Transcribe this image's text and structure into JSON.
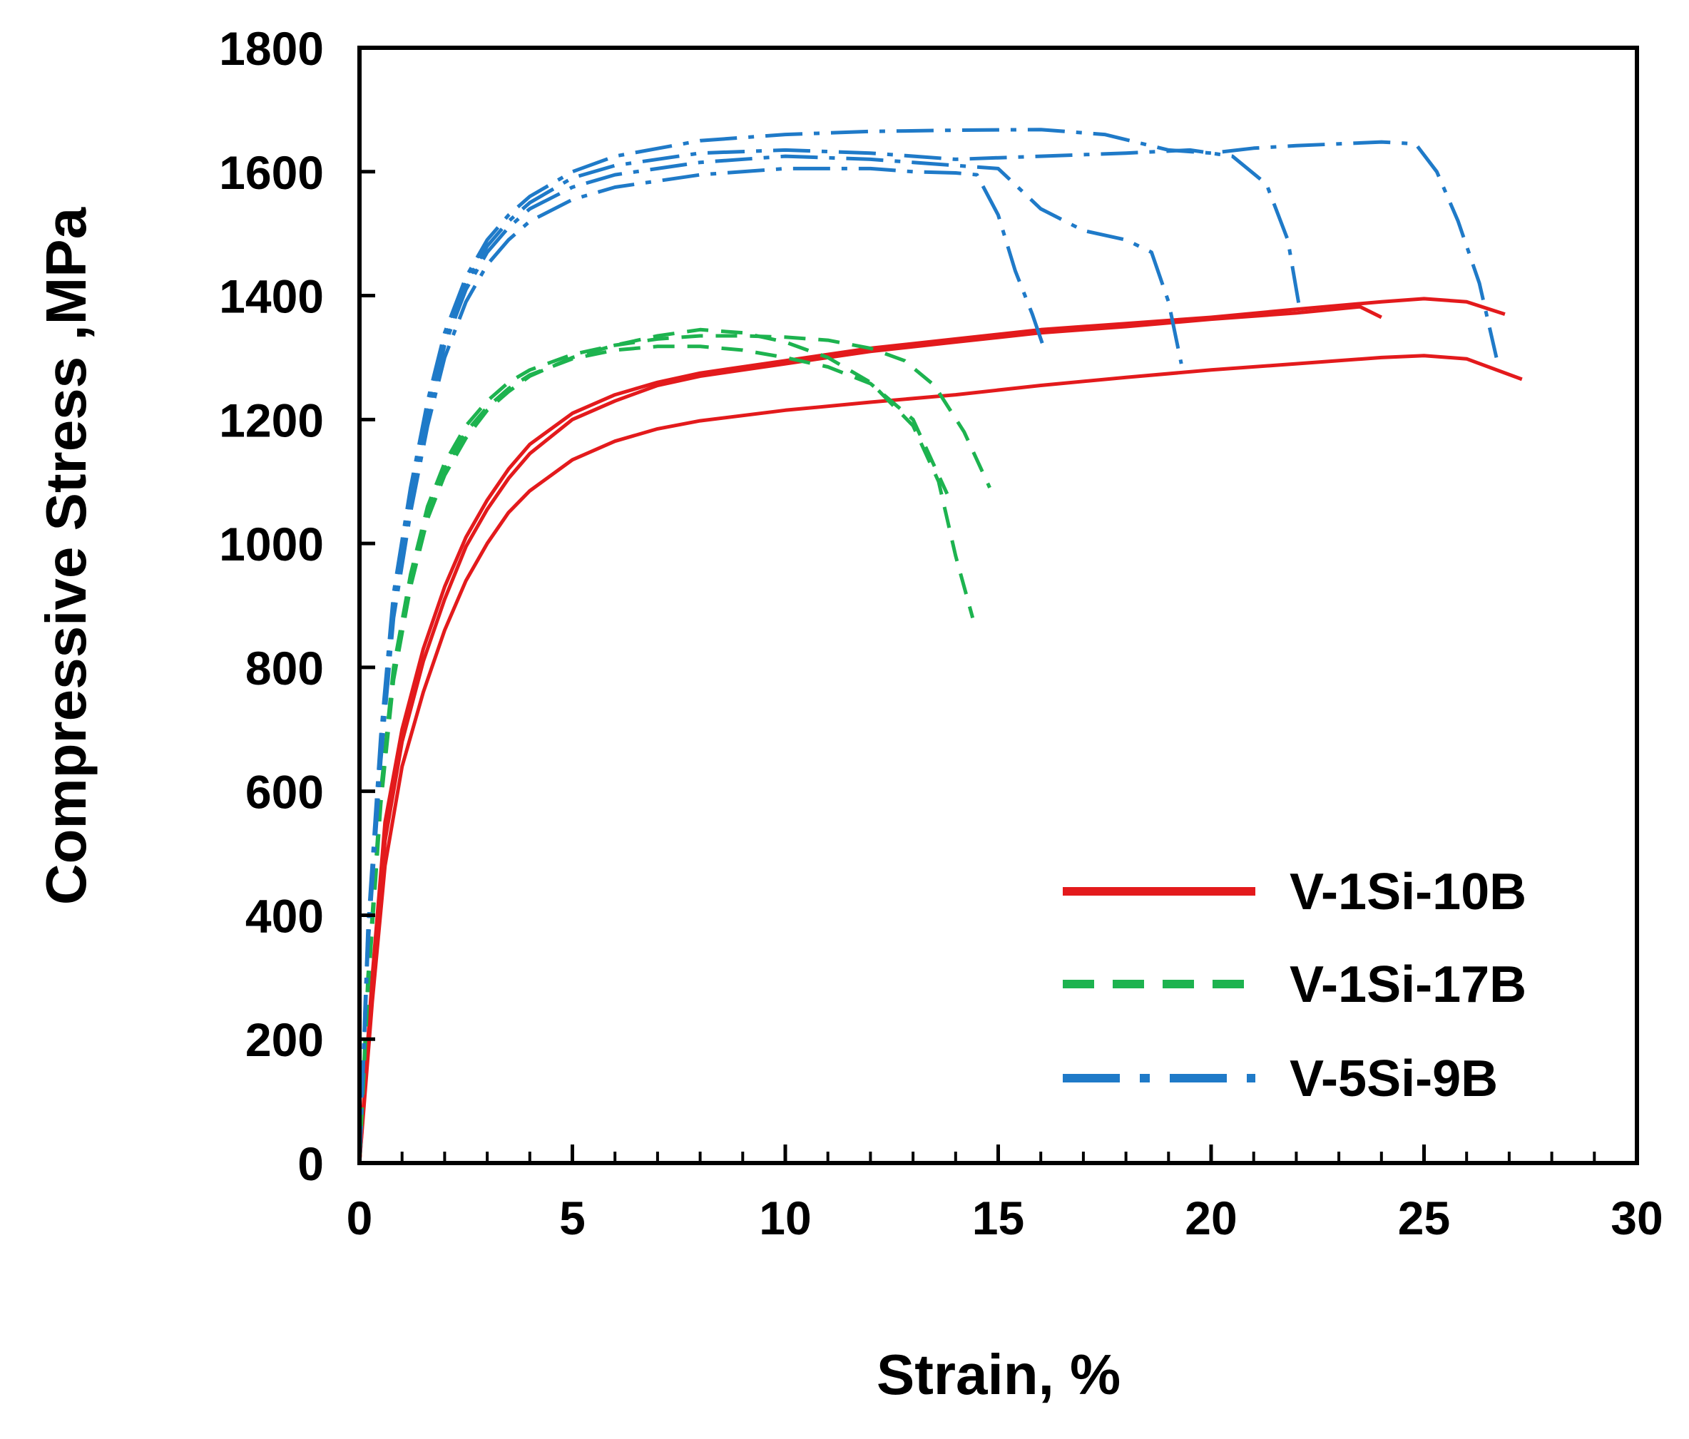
{
  "chart_data": {
    "type": "line",
    "title": "",
    "xlabel": "Strain, %",
    "ylabel": "Compressive Stress ,MPa",
    "xlim": [
      0,
      30
    ],
    "ylim": [
      0,
      1800
    ],
    "xticks": [
      "0",
      "5",
      "10",
      "15",
      "20",
      "25",
      "30"
    ],
    "yticks": [
      "0",
      "200",
      "400",
      "600",
      "800",
      "1000",
      "1200",
      "1400",
      "1600",
      "1800"
    ],
    "grid": false,
    "legend_position": "bottom-right",
    "groups": [
      {
        "name": "V-1Si-10B",
        "color": "#e31a1c",
        "style": "solid",
        "series": [
          {
            "name": "V-1Si-10B run 1",
            "x": [
              0,
              0.3,
              0.6,
              1,
              1.5,
              2,
              2.5,
              3,
              3.5,
              4,
              5,
              6,
              7,
              8,
              10,
              12,
              14,
              16,
              18,
              20,
              22,
              24,
              25,
              26,
              26.9
            ],
            "y": [
              0,
              300,
              550,
              700,
              830,
              930,
              1010,
              1070,
              1120,
              1160,
              1210,
              1240,
              1260,
              1275,
              1295,
              1315,
              1330,
              1345,
              1355,
              1365,
              1378,
              1390,
              1395,
              1390,
              1370
            ]
          },
          {
            "name": "V-1Si-10B run 2",
            "x": [
              0,
              0.3,
              0.6,
              1,
              1.5,
              2,
              2.5,
              3,
              3.5,
              4,
              5,
              6,
              7,
              8,
              10,
              12,
              14,
              16,
              18,
              20,
              22,
              23.5,
              24
            ],
            "y": [
              0,
              280,
              520,
              680,
              810,
              910,
              995,
              1055,
              1105,
              1145,
              1200,
              1230,
              1255,
              1270,
              1290,
              1310,
              1325,
              1340,
              1350,
              1362,
              1372,
              1382,
              1365
            ]
          },
          {
            "name": "V-1Si-10B run 3",
            "x": [
              0,
              0.3,
              0.6,
              1,
              1.5,
              2,
              2.5,
              3,
              3.5,
              4,
              5,
              6,
              7,
              8,
              10,
              12,
              14,
              16,
              18,
              20,
              22,
              24,
              25,
              26,
              27.3
            ],
            "y": [
              0,
              260,
              480,
              640,
              760,
              860,
              940,
              1000,
              1050,
              1085,
              1135,
              1165,
              1185,
              1198,
              1215,
              1228,
              1240,
              1255,
              1268,
              1280,
              1290,
              1300,
              1303,
              1298,
              1265
            ]
          }
        ]
      },
      {
        "name": "V-1Si-17B",
        "color": "#1db34f",
        "style": "dashed",
        "series": [
          {
            "name": "V-1Si-17B run 1",
            "x": [
              0,
              0.2,
              0.5,
              0.8,
              1.2,
              1.6,
              2,
              2.5,
              3,
              3.5,
              4,
              5,
              6,
              7,
              8,
              9,
              10,
              11,
              12,
              12.8,
              13.5,
              14.2,
              14.8
            ],
            "y": [
              0,
              300,
              600,
              800,
              950,
              1060,
              1130,
              1190,
              1230,
              1260,
              1280,
              1305,
              1320,
              1330,
              1335,
              1335,
              1333,
              1328,
              1315,
              1295,
              1255,
              1180,
              1090
            ]
          },
          {
            "name": "V-1Si-17B run 2",
            "x": [
              0,
              0.2,
              0.5,
              0.8,
              1.2,
              1.6,
              2,
              2.5,
              3,
              3.5,
              4,
              5,
              6,
              7,
              8,
              9,
              10,
              11,
              12,
              13,
              13.6,
              14,
              14.4
            ],
            "y": [
              0,
              280,
              580,
              780,
              930,
              1040,
              1110,
              1170,
              1215,
              1245,
              1270,
              1300,
              1320,
              1335,
              1345,
              1340,
              1325,
              1300,
              1260,
              1190,
              1100,
              980,
              880
            ]
          },
          {
            "name": "V-1Si-17B run 3",
            "x": [
              0,
              0.2,
              0.5,
              0.8,
              1.2,
              1.6,
              2,
              2.5,
              3,
              3.5,
              4,
              5,
              6,
              7,
              8,
              9,
              10,
              11,
              12,
              13,
              13.8
            ],
            "y": [
              0,
              290,
              590,
              790,
              940,
              1050,
              1120,
              1180,
              1220,
              1250,
              1272,
              1298,
              1312,
              1318,
              1318,
              1312,
              1300,
              1285,
              1258,
              1200,
              1080
            ]
          }
        ]
      },
      {
        "name": "V-5Si-9B",
        "color": "#1f7ac8",
        "style": "dashdot",
        "series": [
          {
            "name": "V-5Si-9B run 1",
            "x": [
              0,
              0.2,
              0.5,
              0.8,
              1.2,
              1.6,
              2,
              2.5,
              3,
              3.5,
              4,
              5,
              6,
              8,
              10,
              12,
              13,
              14,
              14.5,
              15,
              15.4,
              15.8,
              16.1
            ],
            "y": [
              0,
              350,
              650,
              880,
              1050,
              1190,
              1300,
              1390,
              1450,
              1490,
              1520,
              1555,
              1575,
              1595,
              1605,
              1605,
              1600,
              1598,
              1595,
              1530,
              1440,
              1370,
              1310
            ]
          },
          {
            "name": "V-5Si-9B run 2",
            "x": [
              0,
              0.2,
              0.5,
              0.8,
              1.2,
              1.6,
              2,
              2.5,
              3,
              3.5,
              4,
              5,
              6,
              8,
              10,
              12,
              13,
              14,
              15,
              16,
              17,
              18,
              18.6,
              19,
              19.3
            ],
            "y": [
              0,
              360,
              670,
              900,
              1070,
              1210,
              1320,
              1410,
              1470,
              1510,
              1540,
              1575,
              1595,
              1615,
              1625,
              1620,
              1615,
              1610,
              1605,
              1540,
              1505,
              1490,
              1470,
              1390,
              1290
            ]
          },
          {
            "name": "V-5Si-9B run 3",
            "x": [
              0,
              0.2,
              0.5,
              0.8,
              1.2,
              1.6,
              2,
              2.5,
              3,
              3.5,
              4,
              5,
              6,
              8,
              10,
              12,
              14,
              16,
              18,
              19.5,
              20.5,
              21.3,
              21.8,
              22.1
            ],
            "y": [
              0,
              370,
              680,
              910,
              1080,
              1220,
              1330,
              1420,
              1480,
              1520,
              1550,
              1590,
              1610,
              1630,
              1635,
              1630,
              1620,
              1625,
              1630,
              1635,
              1625,
              1580,
              1490,
              1370
            ]
          },
          {
            "name": "V-5Si-9B run 4",
            "x": [
              0,
              0.2,
              0.5,
              0.8,
              1.2,
              1.6,
              2,
              2.5,
              3,
              3.5,
              4,
              5,
              6,
              8,
              10,
              12,
              14,
              16,
              17.5,
              19,
              20,
              21,
              22,
              23,
              24,
              24.8,
              25.3,
              25.8,
              26.3,
              26.7
            ],
            "y": [
              0,
              380,
              690,
              920,
              1090,
              1230,
              1340,
              1430,
              1490,
              1530,
              1560,
              1600,
              1625,
              1650,
              1660,
              1665,
              1667,
              1668,
              1660,
              1635,
              1630,
              1638,
              1642,
              1645,
              1648,
              1645,
              1600,
              1520,
              1420,
              1300
            ]
          }
        ]
      }
    ]
  }
}
